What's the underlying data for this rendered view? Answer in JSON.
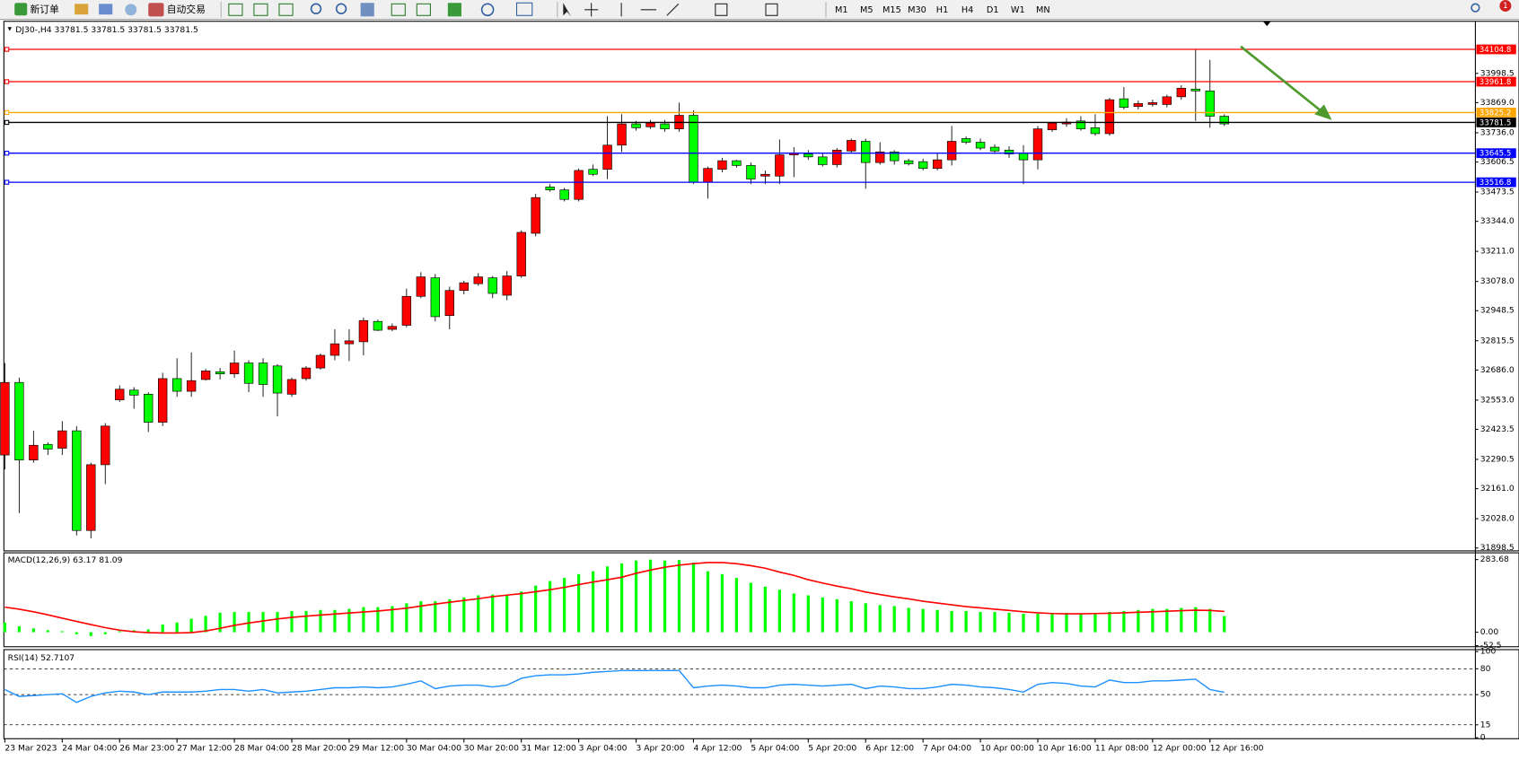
{
  "toolbar": {
    "new_order": "新订单",
    "auto_trade": "自动交易",
    "timeframes": [
      "M1",
      "M5",
      "M15",
      "M30",
      "H1",
      "H4",
      "D1",
      "W1",
      "MN"
    ],
    "notification": "1"
  },
  "chart_data": [
    {
      "type": "candlestick",
      "title": "DJ30-,H4 33781.5 33781.5 33781.5 33781.5",
      "categories": [
        "23 Mar 2023",
        null,
        null,
        null,
        "24 Mar 04:00",
        null,
        null,
        null,
        "26 Mar 23:00",
        null,
        null,
        null,
        "27 Mar 12:00",
        null,
        null,
        null,
        "28 Mar 04:00",
        null,
        null,
        null,
        "28 Mar 20:00",
        null,
        null,
        null,
        "29 Mar 12:00",
        null,
        null,
        null,
        "30 Mar 04:00",
        null,
        null,
        null,
        "30 Mar 20:00",
        null,
        null,
        null,
        "31 Mar 12:00",
        null,
        null,
        null,
        "3 Apr 04:00",
        null,
        null,
        null,
        "3 Apr 20:00",
        null,
        null,
        null,
        "4 Apr 12:00",
        null,
        null,
        null,
        "5 Apr 04:00",
        null,
        null,
        null,
        "5 Apr 20:00",
        null,
        null,
        null,
        "6 Apr 12:00",
        null,
        null,
        null,
        "7 Apr 04:00",
        null,
        null,
        null,
        "10 Apr 00:00",
        null,
        null,
        null,
        "10 Apr 16:00",
        null,
        null,
        null,
        "11 Apr 08:00",
        null,
        null,
        null,
        "12 Apr 00:00",
        null,
        null,
        null,
        "12 Apr 16:00",
        null
      ],
      "open": [
        32310,
        32631,
        32288,
        32357,
        32340,
        32417,
        31976,
        32267,
        32554,
        32597,
        32579,
        32455,
        32648,
        32592,
        32644,
        32678,
        32669,
        32717,
        32717,
        32704,
        32579,
        32648,
        32695,
        32751,
        32802,
        32811,
        32901,
        32866,
        32884,
        33012,
        33094,
        32927,
        33038,
        33068,
        33094,
        33017,
        33102,
        33291,
        33496,
        33483,
        33441,
        33574,
        33574,
        33681,
        33775,
        33762,
        33775,
        33753,
        33813,
        33518,
        33574,
        33612,
        33591,
        33544,
        33544,
        33638,
        33642,
        33629,
        33595,
        33655,
        33698,
        33604,
        33651,
        33612,
        33608,
        33578,
        33616,
        33710,
        33694,
        33672,
        33659,
        33646,
        33616,
        33749,
        33775,
        33788,
        33758,
        33732,
        33886,
        33852,
        33861,
        33861,
        33895,
        33929,
        33921,
        33809
      ],
      "high": [
        32717,
        32652,
        32417,
        32366,
        32460,
        32438,
        32276,
        32451,
        32618,
        32610,
        32588,
        32674,
        32738,
        32764,
        32691,
        32695,
        32772,
        32729,
        32738,
        32712,
        32652,
        32704,
        32759,
        32866,
        32866,
        32918,
        32909,
        32892,
        33046,
        33119,
        33111,
        33055,
        33081,
        33115,
        33102,
        33124,
        33304,
        33466,
        33509,
        33492,
        33578,
        33595,
        33809,
        33818,
        33788,
        33792,
        33792,
        33869,
        33835,
        33586,
        33625,
        33616,
        33604,
        33569,
        33706,
        33672,
        33659,
        33646,
        33668,
        33710,
        33710,
        33694,
        33659,
        33621,
        33621,
        33646,
        33766,
        33719,
        33710,
        33685,
        33676,
        33681,
        33766,
        33783,
        33800,
        33809,
        33818,
        33890,
        33938,
        33878,
        33882,
        33904,
        33946,
        34105,
        34058,
        33818
      ],
      "low": [
        32246,
        32053,
        32276,
        32310,
        32310,
        31954,
        31941,
        32181,
        32545,
        32515,
        32412,
        32438,
        32567,
        32567,
        32639,
        32644,
        32652,
        32588,
        32567,
        32481,
        32567,
        32639,
        32687,
        32729,
        32725,
        32751,
        32858,
        32858,
        32875,
        33004,
        32901,
        32866,
        33021,
        33059,
        33004,
        32995,
        33094,
        33278,
        33475,
        33432,
        33432,
        33544,
        33531,
        33651,
        33745,
        33753,
        33740,
        33740,
        33509,
        33445,
        33561,
        33582,
        33509,
        33509,
        33509,
        33539,
        33616,
        33586,
        33582,
        33646,
        33488,
        33595,
        33595,
        33591,
        33569,
        33569,
        33591,
        33685,
        33659,
        33642,
        33625,
        33509,
        33574,
        33740,
        33762,
        33745,
        33723,
        33723,
        33839,
        33839,
        33852,
        33848,
        33882,
        33788,
        33758,
        33766
      ],
      "close": [
        32631,
        32288,
        32353,
        32336,
        32417,
        31976,
        32267,
        32438,
        32601,
        32575,
        32455,
        32648,
        32592,
        32639,
        32682,
        32669,
        32717,
        32627,
        32622,
        32584,
        32644,
        32695,
        32751,
        32802,
        32815,
        32905,
        32862,
        32879,
        33012,
        33098,
        32922,
        33038,
        33072,
        33098,
        33025,
        33102,
        33295,
        33449,
        33483,
        33441,
        33569,
        33552,
        33681,
        33775,
        33758,
        33779,
        33753,
        33813,
        33518,
        33578,
        33612,
        33591,
        33531,
        33552,
        33638,
        33646,
        33629,
        33595,
        33659,
        33702,
        33604,
        33651,
        33612,
        33599,
        33578,
        33616,
        33698,
        33694,
        33668,
        33655,
        33642,
        33616,
        33753,
        33779,
        33783,
        33753,
        33732,
        33882,
        33848,
        33865,
        33869,
        33895,
        33933,
        33921,
        33809,
        33775
      ],
      "up_color": "#ff0000",
      "down_color": "#00ff00",
      "ylim": [
        31890,
        34229
      ],
      "yticks": [
        33998.5,
        {
          "value": 33869,
          "label": "33869.0"
        },
        {
          "value": 33736,
          "label": "33736.0"
        },
        33606.5,
        33473.5,
        {
          "value": 33344,
          "label": "33344.0"
        },
        {
          "value": 33211,
          "label": "33211.0"
        },
        {
          "value": 33078,
          "label": "33078.0"
        },
        32948.5,
        32815.5,
        {
          "value": 32686,
          "label": "32686.0"
        },
        {
          "value": 32553,
          "label": "32553.0"
        },
        32423.5,
        32290.5,
        {
          "value": 32161,
          "label": "32161.0"
        },
        {
          "value": 32028,
          "label": "32028.0"
        },
        31898.5
      ],
      "levels": [
        {
          "value": 34104.8,
          "color": "#ff0000"
        },
        {
          "value": 33961.8,
          "color": "#ff0000"
        },
        {
          "value": 33825.2,
          "color": "#ffa500"
        },
        {
          "value": 33781.5,
          "color": "#000000"
        },
        {
          "value": 33645.5,
          "color": "#0000ff"
        },
        {
          "value": 33516.8,
          "color": "#0000ff"
        }
      ]
    },
    {
      "type": "macd",
      "title": "MACD(12,26,9) 63.17 81.09",
      "ylim": [
        -56.7,
        306.4
      ],
      "yticks": [
        283.68,
        {
          "value": 0,
          "label": "0.00"
        },
        -52.5
      ],
      "series": [
        {
          "kind": "bar",
          "color": "#00ff00",
          "values": [
            38,
            23,
            15,
            8,
            4,
            -8,
            -15,
            -8,
            4,
            8,
            11,
            30,
            38,
            53,
            64,
            76,
            79,
            79,
            79,
            79,
            83,
            83,
            87,
            87,
            91,
            98,
            98,
            102,
            113,
            121,
            121,
            129,
            136,
            144,
            147,
            147,
            159,
            182,
            200,
            212,
            227,
            238,
            257,
            269,
            280,
            283.68,
            280,
            282,
            272,
            238,
            227,
            212,
            193,
            178,
            166,
            151,
            144,
            136,
            129,
            121,
            113,
            106,
            102,
            95,
            91,
            87,
            83,
            83,
            79,
            79,
            76,
            72,
            72,
            76,
            76,
            72,
            72,
            79,
            83,
            87,
            91,
            91,
            95,
            98,
            91,
            63.17
          ]
        },
        {
          "kind": "line",
          "color": "#ff0000",
          "values": [
            98,
            90,
            80,
            68,
            55,
            42,
            30,
            18,
            8,
            2,
            -2,
            -3,
            -3,
            -2,
            5,
            15,
            27,
            36,
            44,
            52,
            58,
            63,
            67,
            71,
            75,
            79,
            83,
            88,
            94,
            102,
            110,
            117,
            124,
            131,
            139,
            145,
            151,
            158,
            166,
            175,
            186,
            196,
            205,
            215,
            230,
            243,
            254,
            262,
            268,
            272,
            272,
            268,
            260,
            250,
            235,
            222,
            205,
            192,
            180,
            170,
            157,
            147,
            138,
            130,
            121,
            114,
            107,
            100,
            95,
            90,
            85,
            80,
            76,
            73,
            72,
            72,
            73,
            74,
            76,
            78,
            80,
            82,
            84,
            86,
            85,
            81.09
          ]
        }
      ]
    },
    {
      "type": "line",
      "title": "RSI(14) 52.7107",
      "color": "#1e90ff",
      "ylim": [
        0,
        100
      ],
      "yticks": [
        100,
        80,
        50,
        15,
        0
      ],
      "dashed_levels": true,
      "values": [
        56,
        48,
        49,
        50,
        51,
        41,
        48,
        52,
        54,
        53,
        50,
        53,
        53,
        53,
        54,
        56,
        56,
        54,
        56,
        52,
        53,
        54,
        56,
        58,
        58,
        59,
        58,
        59,
        62,
        66,
        57,
        60,
        61,
        61,
        59,
        61,
        69,
        72,
        73,
        73,
        74,
        76,
        77,
        78,
        78,
        78,
        78,
        78,
        58,
        60,
        61,
        60,
        58,
        58,
        61,
        62,
        61,
        60,
        61,
        62,
        57,
        60,
        59,
        57,
        57,
        59,
        62,
        61,
        59,
        58,
        56,
        53,
        62,
        64,
        63,
        60,
        59,
        67,
        64,
        64,
        66,
        66,
        67,
        68,
        56,
        52.7107
      ]
    }
  ]
}
